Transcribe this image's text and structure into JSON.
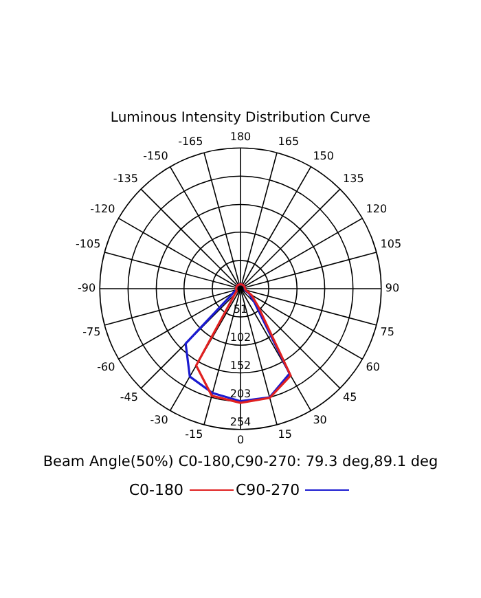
{
  "chart_data": {
    "type": "radar",
    "title": "Luminous Intensity Distribution Curve",
    "categories": [
      "180",
      "165",
      "150",
      "135",
      "120",
      "105",
      "90",
      "75",
      "60",
      "45",
      "30",
      "15",
      "0",
      "-15",
      "-30",
      "-45",
      "-60",
      "-75",
      "-90",
      "-105",
      "-120",
      "-135",
      "-150",
      "-165"
    ],
    "series": [
      {
        "name": "C0-180",
        "color": "#e02020",
        "values": [
          8,
          8,
          8,
          8,
          8,
          8,
          8,
          10,
          23,
          45,
          181,
          204,
          206,
          200,
          160,
          15,
          8,
          8,
          8,
          8,
          8,
          8,
          8,
          8
        ]
      },
      {
        "name": "C90-270",
        "color": "#1a1ad0",
        "values": [
          8,
          8,
          8,
          8,
          8,
          8,
          8,
          8,
          18,
          36,
          177,
          203,
          203,
          195,
          183,
          140,
          15,
          8,
          8,
          8,
          8,
          8,
          8,
          8
        ]
      }
    ],
    "ylim": [
      0,
      254
    ],
    "yticks": [
      51,
      102,
      152,
      203,
      254
    ],
    "grid": true,
    "legend": "bottom",
    "annotations": [
      "Beam Angle(50%) C0-180,C90-270: 79.3 deg,89.1 deg"
    ]
  }
}
